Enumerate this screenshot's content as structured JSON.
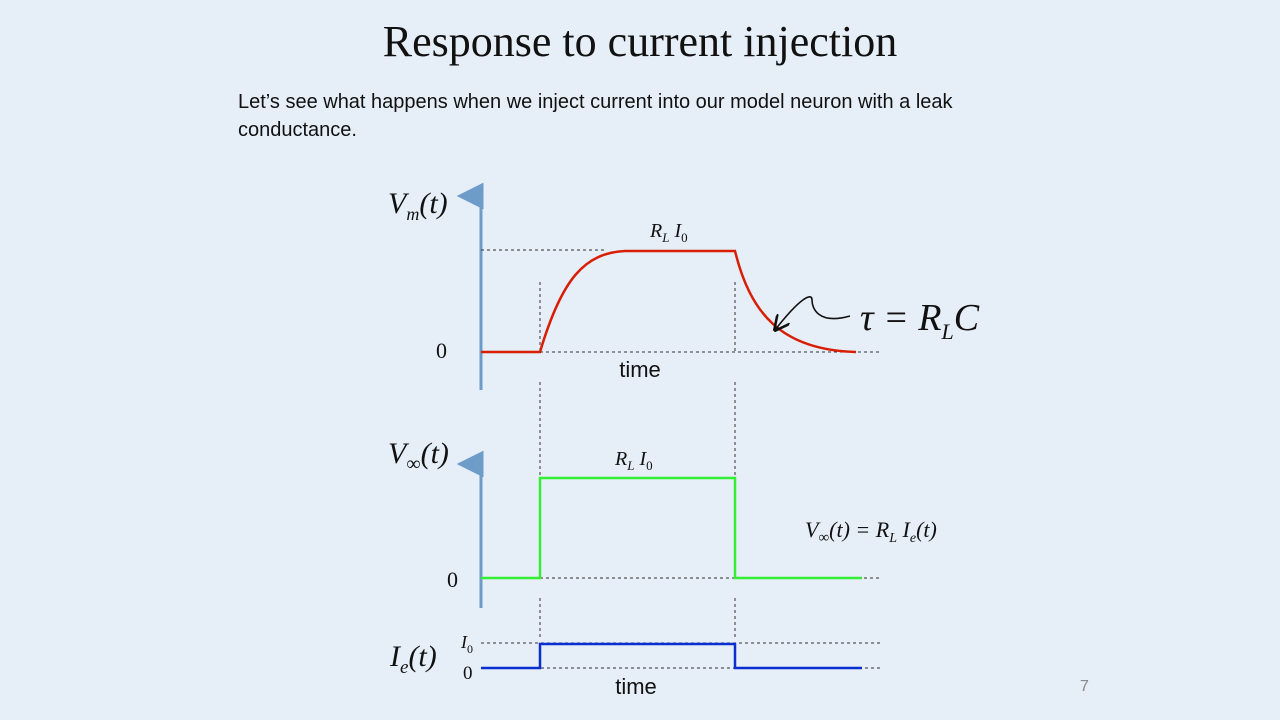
{
  "slide": {
    "title": "Response to current injection",
    "intro": "Let’s see what happens when we inject current into our model neuron with a leak conductance.",
    "page_number": "7"
  },
  "colors": {
    "background": "#e6eef7",
    "axis": "#6e9cc9",
    "vm_trace": "#d81e05",
    "vinf_trace": "#33ee33",
    "ie_trace": "#0a2fd0",
    "dashed": "#333333"
  },
  "panel_vm": {
    "ylabel_main": "V",
    "ylabel_sub": "m",
    "ylabel_tail": "(t)",
    "zero_label": "0",
    "plateau_main": "R",
    "plateau_sub_l": "L",
    "plateau_i": "I",
    "plateau_sub_0": "0",
    "xlabel": "time",
    "tau_lhs": "τ = R",
    "tau_sub": "L",
    "tau_rhs": "C"
  },
  "panel_vinf": {
    "ylabel_main": "V",
    "ylabel_sub": "∞",
    "ylabel_tail": "(t)",
    "zero_label": "0",
    "level_main": "R",
    "level_sub_l": "L",
    "level_i": "I",
    "level_sub_0": "0",
    "eq_v": "V",
    "eq_v_sub": "∞",
    "eq_mid": "(t) = R",
    "eq_r_sub": "L",
    "eq_i": " I",
    "eq_i_sub": "e",
    "eq_tail": "(t)"
  },
  "panel_ie": {
    "ylabel_main": "I",
    "ylabel_sub": "e",
    "ylabel_tail": "(t)",
    "top_tick_main": "I",
    "top_tick_sub": "0",
    "zero_label": "0",
    "xlabel": "time"
  }
}
